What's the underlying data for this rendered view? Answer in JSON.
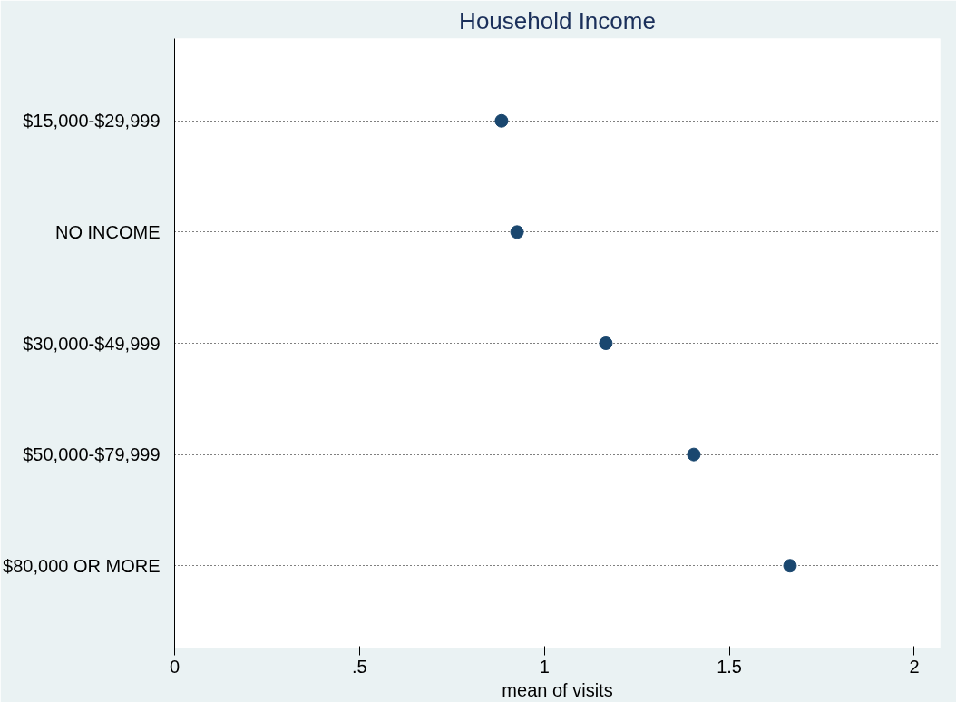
{
  "chart_data": {
    "type": "scatter",
    "orientation": "horizontal",
    "title": "Household Income",
    "xlabel": "mean of visits",
    "categories": [
      "$15,000-$29,999",
      "NO INCOME",
      "$30,000-$49,999",
      "$50,000-$79,999",
      "$80,000 OR MORE"
    ],
    "values": [
      0.884,
      0.926,
      1.166,
      1.404,
      1.664
    ],
    "color": "#1a476f",
    "marker": "circle",
    "xlim": [
      0,
      2.07
    ],
    "xticks": [
      0,
      {
        "value": 0.5,
        "label": ".5"
      },
      1,
      1.5,
      2
    ],
    "grid": "y"
  }
}
